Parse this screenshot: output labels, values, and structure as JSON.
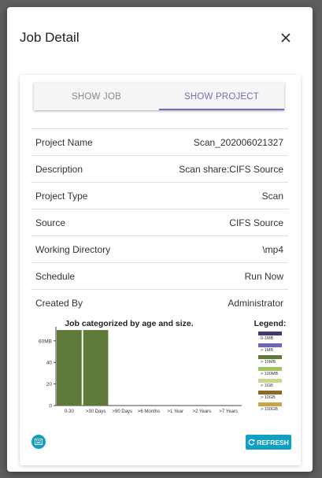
{
  "dialog": {
    "title": "Job Detail"
  },
  "tabs": [
    {
      "label": "SHOW JOB",
      "active": false
    },
    {
      "label": "SHOW PROJECT",
      "active": true
    }
  ],
  "details": [
    {
      "label": "Project Name",
      "value": "Scan_202006021327"
    },
    {
      "label": "Description",
      "value": "Scan share:CIFS Source"
    },
    {
      "label": "Project Type",
      "value": "Scan"
    },
    {
      "label": "Source",
      "value": "CIFS Source"
    },
    {
      "label": "Working Directory",
      "value": "\\mp4"
    },
    {
      "label": "Schedule",
      "value": "Run Now"
    },
    {
      "label": "Created By",
      "value": "Administrator"
    }
  ],
  "chart_data": {
    "type": "bar",
    "title": "Job categorized by age and size.",
    "legend_title": "Legend:",
    "categories": [
      "0-30",
      ">30 Days",
      ">90 Days",
      ">6 Months",
      ">1 Year",
      ">2 Years",
      ">7 Years"
    ],
    "series": [
      {
        "name": "0-1MB",
        "color": "#3e3a73",
        "values": [
          0,
          0,
          0,
          0,
          0,
          0,
          0
        ]
      },
      {
        "name": "> 1MB",
        "color": "#6b66b8",
        "values": [
          0,
          0,
          0,
          0,
          0,
          0,
          0
        ]
      },
      {
        "name": "> 10MB",
        "color": "#5f7a38",
        "values": [
          70,
          70,
          0,
          0,
          0,
          0,
          0
        ]
      },
      {
        "name": "> 100MB",
        "color": "#a3c462",
        "values": [
          0,
          0,
          0,
          0,
          0,
          0,
          0
        ]
      },
      {
        "name": "> 1GB",
        "color": "#c7d88e",
        "values": [
          0,
          0,
          0,
          0,
          0,
          0,
          0
        ]
      },
      {
        "name": "> 10GB",
        "color": "#8a6a25",
        "values": [
          0,
          0,
          0,
          0,
          0,
          0,
          0
        ]
      },
      {
        "name": "> 100GB",
        "color": "#c9a448",
        "values": [
          0,
          0,
          0,
          0,
          0,
          0,
          0
        ]
      }
    ],
    "yticks": [
      "0",
      "20",
      "40",
      "60MB"
    ],
    "ylim": [
      0,
      73
    ],
    "legend_placement": "right",
    "grid": false
  },
  "actions": {
    "refresh_label": "REFRESH"
  },
  "colors": {
    "accent": "#11a0c4",
    "tab_active": "#7a6bb5",
    "overlay": "#5f5f5f"
  }
}
